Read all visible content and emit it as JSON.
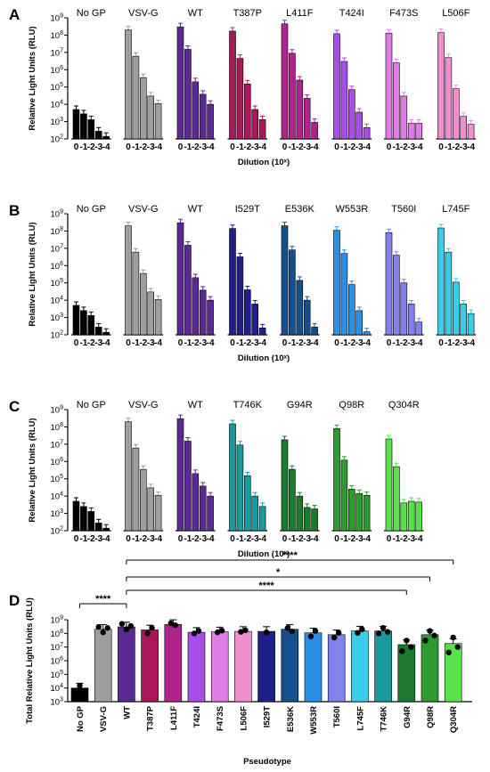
{
  "panels": [
    {
      "label": "A",
      "ylabel": "Relative Light Units (RLU)",
      "xlabel": "Dilution (10ˣ)",
      "dilution_ticks": [
        "0",
        "-1",
        "-2",
        "-3",
        "-4"
      ],
      "ylim": [
        100,
        1000000000
      ],
      "groups": [
        {
          "name": "No GP",
          "color": "#000000",
          "values": [
            5000,
            2800,
            1300,
            280,
            140
          ]
        },
        {
          "name": "VSV-G",
          "color": "#9e9e9e",
          "values": [
            200000000,
            6000000,
            350000,
            30000,
            11000
          ]
        },
        {
          "name": "WT",
          "color": "#5b2a91",
          "values": [
            300000000,
            15000000,
            200000,
            38000,
            10000
          ]
        },
        {
          "name": "T387P",
          "color": "#a8185a",
          "values": [
            170000000,
            4500000,
            150000,
            5000,
            1300
          ]
        },
        {
          "name": "L411F",
          "color": "#b0238c",
          "values": [
            450000000,
            9000000,
            250000,
            22000,
            900
          ]
        },
        {
          "name": "T424I",
          "color": "#a64fe8",
          "values": [
            120000000,
            3000000,
            70000,
            3500,
            450
          ]
        },
        {
          "name": "F473S",
          "color": "#e07ae6",
          "values": [
            130000000,
            2500000,
            30000,
            800,
            800
          ]
        },
        {
          "name": "L506F",
          "color": "#ef8fd0",
          "values": [
            140000000,
            5000000,
            80000,
            2000,
            700
          ]
        }
      ]
    },
    {
      "label": "B",
      "ylabel": "Relative Light Units (RLU)",
      "xlabel": "Dilution (10ˣ)",
      "dilution_ticks": [
        "0",
        "-1",
        "-2",
        "-3",
        "-4"
      ],
      "ylim": [
        100,
        1000000000
      ],
      "groups": [
        {
          "name": "No GP",
          "color": "#000000",
          "values": [
            5000,
            2500,
            1300,
            280,
            140
          ]
        },
        {
          "name": "VSV-G",
          "color": "#9e9e9e",
          "values": [
            200000000,
            6000000,
            350000,
            30000,
            11000
          ]
        },
        {
          "name": "WT",
          "color": "#5b2a91",
          "values": [
            300000000,
            15000000,
            200000,
            38000,
            10000
          ]
        },
        {
          "name": "I529T",
          "color": "#1f1f8a",
          "values": [
            140000000,
            3200000,
            40000,
            6000,
            250
          ]
        },
        {
          "name": "E536K",
          "color": "#174f8c",
          "values": [
            200000000,
            8000000,
            140000,
            10000,
            280
          ]
        },
        {
          "name": "W553R",
          "color": "#2b8fe8",
          "values": [
            110000000,
            5000000,
            80000,
            2500,
            150
          ]
        },
        {
          "name": "T560I",
          "color": "#8080ee",
          "values": [
            80000000,
            4000000,
            100000,
            6000,
            550
          ]
        },
        {
          "name": "L745F",
          "color": "#3ccbe8",
          "values": [
            150000000,
            6000000,
            110000,
            6000,
            1700
          ]
        }
      ]
    },
    {
      "label": "C",
      "ylabel": "Relative Light Units (RLU)",
      "xlabel": "Dilution (10ˣ)",
      "dilution_ticks": [
        "0",
        "-1",
        "-2",
        "-3",
        "-4"
      ],
      "ylim": [
        100,
        1000000000
      ],
      "groups": [
        {
          "name": "No GP",
          "color": "#000000",
          "values": [
            5000,
            2500,
            1300,
            280,
            140
          ]
        },
        {
          "name": "VSV-G",
          "color": "#9e9e9e",
          "values": [
            200000000,
            6000000,
            350000,
            30000,
            11000
          ]
        },
        {
          "name": "WT",
          "color": "#5b2a91",
          "values": [
            300000000,
            15000000,
            200000,
            38000,
            10000
          ]
        },
        {
          "name": "T746K",
          "color": "#17999e",
          "values": [
            150000000,
            9000000,
            150000,
            10000,
            2500
          ]
        },
        {
          "name": "G94R",
          "color": "#1c7a2e",
          "values": [
            18000000,
            350000,
            10000,
            2200,
            1800
          ]
        },
        {
          "name": "Q98R",
          "color": "#2f9a2f",
          "values": [
            80000000,
            1200000,
            25000,
            14000,
            11000
          ]
        },
        {
          "name": "Q304R",
          "color": "#59e24a",
          "values": [
            20000000,
            500000,
            4000,
            5000,
            4500
          ]
        }
      ]
    }
  ],
  "panel_d": {
    "label": "D",
    "ylabel": "Total Relative Light Units (RLU)",
    "xlabel": "Pseudotype",
    "ylim": [
      1000,
      1000000000
    ],
    "bars": [
      {
        "name": "No GP",
        "color": "#000000",
        "value": 10000,
        "points": [
          15000
        ]
      },
      {
        "name": "VSV-G",
        "color": "#9e9e9e",
        "value": 200000000,
        "points": [
          300000000,
          120000000,
          250000000
        ]
      },
      {
        "name": "WT",
        "color": "#5b2a91",
        "value": 300000000,
        "points": [
          500000000,
          200000000,
          350000000
        ]
      },
      {
        "name": "T387P",
        "color": "#a8185a",
        "value": 180000000,
        "points": [
          100000000,
          250000000
        ]
      },
      {
        "name": "L411F",
        "color": "#b0238c",
        "value": 450000000,
        "points": [
          550000000,
          400000000
        ]
      },
      {
        "name": "T424I",
        "color": "#a64fe8",
        "value": 120000000,
        "points": [
          100000000,
          150000000
        ]
      },
      {
        "name": "F473S",
        "color": "#e07ae6",
        "value": 130000000,
        "points": [
          120000000,
          160000000
        ]
      },
      {
        "name": "L506F",
        "color": "#ef8fd0",
        "value": 140000000,
        "points": [
          130000000,
          170000000
        ]
      },
      {
        "name": "I529T",
        "color": "#1f1f8a",
        "value": 140000000,
        "points": [
          120000000
        ]
      },
      {
        "name": "E536K",
        "color": "#174f8c",
        "value": 200000000,
        "points": [
          250000000,
          140000000
        ]
      },
      {
        "name": "W553R",
        "color": "#2b8fe8",
        "value": 110000000,
        "points": [
          60000000,
          150000000
        ]
      },
      {
        "name": "T560I",
        "color": "#8080ee",
        "value": 80000000,
        "points": [
          50000000,
          110000000
        ]
      },
      {
        "name": "L745F",
        "color": "#3ccbe8",
        "value": 150000000,
        "points": [
          110000000,
          200000000
        ]
      },
      {
        "name": "T746K",
        "color": "#17999e",
        "value": 150000000,
        "points": [
          100000000,
          250000000,
          130000000
        ]
      },
      {
        "name": "G94R",
        "color": "#1c7a2e",
        "value": 15000000,
        "points": [
          5000000,
          30000000,
          10000000
        ]
      },
      {
        "name": "Q98R",
        "color": "#2f9a2f",
        "value": 80000000,
        "points": [
          30000000,
          150000000,
          70000000
        ]
      },
      {
        "name": "Q304R",
        "color": "#59e24a",
        "value": 18000000,
        "points": [
          4000000,
          50000000,
          10000000
        ]
      }
    ],
    "significance": [
      {
        "from": "No GP",
        "to": "WT",
        "label": "****"
      },
      {
        "from": "WT",
        "to": "Q304R",
        "label": "****"
      },
      {
        "from": "WT",
        "to": "Q98R",
        "label": "*"
      },
      {
        "from": "WT",
        "to": "G94R",
        "label": "****"
      }
    ]
  },
  "chart_data": [
    {
      "type": "bar",
      "title": "A",
      "ylabel": "Relative Light Units (RLU)",
      "xlabel": "Dilution (10ˣ)",
      "yscale": "log",
      "ylim": [
        100,
        1000000000
      ],
      "categories": [
        "0",
        "-1",
        "-2",
        "-3",
        "-4"
      ],
      "series": [
        {
          "name": "No GP",
          "values": [
            5000,
            2800,
            1300,
            280,
            140
          ]
        },
        {
          "name": "VSV-G",
          "values": [
            200000000,
            6000000,
            350000,
            30000,
            11000
          ]
        },
        {
          "name": "WT",
          "values": [
            300000000,
            15000000,
            200000,
            38000,
            10000
          ]
        },
        {
          "name": "T387P",
          "values": [
            170000000,
            4500000,
            150000,
            5000,
            1300
          ]
        },
        {
          "name": "L411F",
          "values": [
            450000000,
            9000000,
            250000,
            22000,
            900
          ]
        },
        {
          "name": "T424I",
          "values": [
            120000000,
            3000000,
            70000,
            3500,
            450
          ]
        },
        {
          "name": "F473S",
          "values": [
            130000000,
            2500000,
            30000,
            800,
            800
          ]
        },
        {
          "name": "L506F",
          "values": [
            140000000,
            5000000,
            80000,
            2000,
            700
          ]
        }
      ]
    },
    {
      "type": "bar",
      "title": "B",
      "ylabel": "Relative Light Units (RLU)",
      "xlabel": "Dilution (10ˣ)",
      "yscale": "log",
      "ylim": [
        100,
        1000000000
      ],
      "categories": [
        "0",
        "-1",
        "-2",
        "-3",
        "-4"
      ],
      "series": [
        {
          "name": "No GP",
          "values": [
            5000,
            2500,
            1300,
            280,
            140
          ]
        },
        {
          "name": "VSV-G",
          "values": [
            200000000,
            6000000,
            350000,
            30000,
            11000
          ]
        },
        {
          "name": "WT",
          "values": [
            300000000,
            15000000,
            200000,
            38000,
            10000
          ]
        },
        {
          "name": "I529T",
          "values": [
            140000000,
            3200000,
            40000,
            6000,
            250
          ]
        },
        {
          "name": "E536K",
          "values": [
            200000000,
            8000000,
            140000,
            10000,
            280
          ]
        },
        {
          "name": "W553R",
          "values": [
            110000000,
            5000000,
            80000,
            2500,
            150
          ]
        },
        {
          "name": "T560I",
          "values": [
            80000000,
            4000000,
            100000,
            6000,
            550
          ]
        },
        {
          "name": "L745F",
          "values": [
            150000000,
            6000000,
            110000,
            6000,
            1700
          ]
        }
      ]
    },
    {
      "type": "bar",
      "title": "C",
      "ylabel": "Relative Light Units (RLU)",
      "xlabel": "Dilution (10ˣ)",
      "yscale": "log",
      "ylim": [
        100,
        1000000000
      ],
      "categories": [
        "0",
        "-1",
        "-2",
        "-3",
        "-4"
      ],
      "series": [
        {
          "name": "No GP",
          "values": [
            5000,
            2500,
            1300,
            280,
            140
          ]
        },
        {
          "name": "VSV-G",
          "values": [
            200000000,
            6000000,
            350000,
            30000,
            11000
          ]
        },
        {
          "name": "WT",
          "values": [
            300000000,
            15000000,
            200000,
            38000,
            10000
          ]
        },
        {
          "name": "T746K",
          "values": [
            150000000,
            9000000,
            150000,
            10000,
            2500
          ]
        },
        {
          "name": "G94R",
          "values": [
            18000000,
            350000,
            10000,
            2200,
            1800
          ]
        },
        {
          "name": "Q98R",
          "values": [
            80000000,
            1200000,
            25000,
            14000,
            11000
          ]
        },
        {
          "name": "Q304R",
          "values": [
            20000000,
            500000,
            4000,
            5000,
            4500
          ]
        }
      ]
    },
    {
      "type": "bar",
      "title": "D",
      "ylabel": "Total Relative Light Units (RLU)",
      "xlabel": "Pseudotype",
      "yscale": "log",
      "ylim": [
        1000,
        1000000000
      ],
      "categories": [
        "No GP",
        "VSV-G",
        "WT",
        "T387P",
        "L411F",
        "T424I",
        "F473S",
        "L506F",
        "I529T",
        "E536K",
        "W553R",
        "T560I",
        "L745F",
        "T746K",
        "G94R",
        "Q98R",
        "Q304R"
      ],
      "values": [
        10000,
        200000000,
        300000000,
        180000000,
        450000000,
        120000000,
        130000000,
        140000000,
        140000000,
        200000000,
        110000000,
        80000000,
        150000000,
        150000000,
        15000000,
        80000000,
        18000000
      ]
    }
  ]
}
